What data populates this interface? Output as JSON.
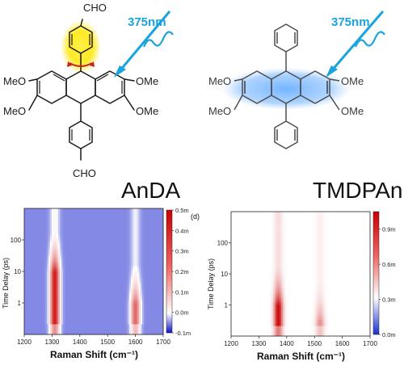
{
  "molecules": {
    "left": {
      "name": "AnDA",
      "top_group": "CHO",
      "bottom_group": "CHO",
      "left_subs": [
        "MeO",
        "MeO"
      ],
      "right_subs": [
        "OMe",
        "OMe"
      ],
      "laser_label": "375nm"
    },
    "right": {
      "name": "TMDPAn",
      "left_subs": [
        "MeO",
        "MeO"
      ],
      "right_subs": [
        "OMe",
        "OMe"
      ],
      "laser_label": "375nm"
    }
  },
  "colors": {
    "laser": "#1aa3dd",
    "glow_yellow": "#ffe600",
    "glow_blue": "#5aa8ff",
    "rotation_arrow": "#cc2020"
  },
  "chart_data": [
    {
      "type": "heatmap",
      "xlabel": "Raman Shift (cm⁻¹)",
      "ylabel": "Time Delay (ps)",
      "xlim": [
        1200,
        1700
      ],
      "x_ticks": [
        "1200",
        "1300",
        "1400",
        "1500",
        "1600",
        "1700"
      ],
      "y_scale": "log",
      "ylim": [
        0.1,
        1000
      ],
      "y_ticks": [
        "1",
        "10",
        "100"
      ],
      "colorbar_ticks": [
        "0.5m",
        "0.4m",
        "0.3m",
        "0.2m",
        "0.1m",
        "0.0m",
        "-0.1m"
      ],
      "colorbar_range": [
        -0.1,
        0.5
      ],
      "colormap": "blue-white-red",
      "panel_label": "(d)",
      "bands": [
        {
          "center": 1310,
          "peak": 0.5,
          "strong_until_ps": 10
        },
        {
          "center": 1600,
          "peak": 0.35,
          "strong_until_ps": 1
        }
      ]
    },
    {
      "type": "heatmap",
      "xlabel": "Raman Shift (cm⁻¹)",
      "ylabel": "Time Delay (ps)",
      "xlim": [
        1200,
        1700
      ],
      "x_ticks": [
        "1200",
        "1300",
        "1400",
        "1500",
        "1600",
        "1700"
      ],
      "y_scale": "log",
      "ylim": [
        0.1,
        1000
      ],
      "y_ticks": [
        "1",
        "10",
        "100"
      ],
      "colorbar_ticks": [
        "0.9m",
        "0.6m",
        "0.3m",
        "0.0m"
      ],
      "colorbar_range": [
        0,
        1.05
      ],
      "colormap": "blue-white-red",
      "bands": [
        {
          "center": 1370,
          "peak": 1.0,
          "strong_until_ps": 1
        },
        {
          "center": 1520,
          "peak": 0.45,
          "strong_until_ps": 0.3
        }
      ]
    }
  ]
}
